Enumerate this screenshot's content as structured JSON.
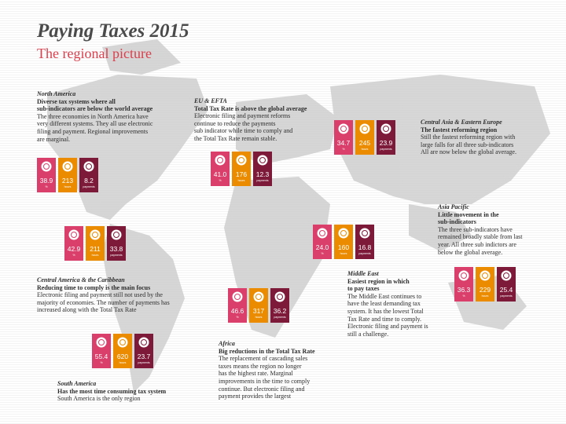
{
  "header": {
    "title": "Paying Taxes 2015",
    "subtitle": "The regional picture"
  },
  "regions": [
    {
      "name": "North America",
      "headline": [
        "Diverse tax systems where all",
        "sub-indicators are below the world average"
      ],
      "body": [
        "The three economies in North America have",
        "very different systems. They all use electronic",
        "filing and payment. Regional improvements",
        "are marginal."
      ],
      "tiles": [
        {
          "value": "38.9",
          "unit": "%"
        },
        {
          "value": "213",
          "unit": "hours"
        },
        {
          "value": "8.2",
          "unit": "payments"
        }
      ]
    },
    {
      "name": "EU & EFTA",
      "headline": [
        "Total Tax Rate is above the global average"
      ],
      "body": [
        "Electronic filing and payment reforms",
        "continue to reduce the payments",
        "sub indicator while time to comply and",
        "the Total Tax Rate remain stable."
      ],
      "tiles": [
        {
          "value": "41.0",
          "unit": "%"
        },
        {
          "value": "176",
          "unit": "hours"
        },
        {
          "value": "12.3",
          "unit": "payments"
        }
      ]
    },
    {
      "name": "Central Asia & Eastern Europe",
      "headline": [
        "The fastest reforming region"
      ],
      "body": [
        "Still the fastest reforming region with",
        "large falls for all three sub-indicators",
        "All are now below the global average."
      ],
      "tiles": [
        {
          "value": "34.7",
          "unit": "%"
        },
        {
          "value": "245",
          "unit": "hours"
        },
        {
          "value": "23.9",
          "unit": "payments"
        }
      ]
    },
    {
      "name": "Asia Pacific",
      "headline": [
        "Little movement in the",
        "sub-indicators"
      ],
      "body": [
        "The three sub-indicators have",
        "remained broadly stable from last",
        "year. All three sub indictors are",
        "below the global average."
      ],
      "tiles": [
        {
          "value": "36.3",
          "unit": "%"
        },
        {
          "value": "229",
          "unit": "hours"
        },
        {
          "value": "25.4",
          "unit": "payments"
        }
      ]
    },
    {
      "name": "Central America & the Caribbean",
      "headline": [
        "Reducing time to comply is the main focus"
      ],
      "body": [
        "Electronic filing and payment still not used by the",
        "majority of economies. The number of payments has",
        "increased along with the Total Tax Rate"
      ],
      "tiles": [
        {
          "value": "42.9",
          "unit": "%"
        },
        {
          "value": "211",
          "unit": "hours"
        },
        {
          "value": "33.8",
          "unit": "payments"
        }
      ]
    },
    {
      "name": "Middle East",
      "headline": [
        "Easiest region in which",
        "to pay taxes"
      ],
      "body": [
        "The Middle East continues to",
        "have the least demanding tax",
        "system. It has the lowest Total",
        "Tax Rate and time to comply.",
        "Electronic filing and payment is",
        "still a challenge."
      ],
      "tiles": [
        {
          "value": "24.0",
          "unit": "%"
        },
        {
          "value": "160",
          "unit": "hours"
        },
        {
          "value": "16.8",
          "unit": "payments"
        }
      ]
    },
    {
      "name": "Africa",
      "headline": [
        "Big reductions in the Total Tax Rate"
      ],
      "body": [
        "The replacement of cascading sales",
        "taxes means the region no longer",
        "has the highest rate. Marginal",
        "improvements in the time to comply",
        "continue. But electronic filing and",
        "payment provides the largest"
      ],
      "tiles": [
        {
          "value": "46.6",
          "unit": "%"
        },
        {
          "value": "317",
          "unit": "hours"
        },
        {
          "value": "36.2",
          "unit": "payments"
        }
      ]
    },
    {
      "name": "South America",
      "headline": [
        "Has the most time consuming tax system"
      ],
      "body": [
        "South America is the only region"
      ],
      "tiles": [
        {
          "value": "55.4",
          "unit": "%"
        },
        {
          "value": "620",
          "unit": "hours"
        },
        {
          "value": "23.7",
          "unit": "payments"
        }
      ]
    }
  ]
}
